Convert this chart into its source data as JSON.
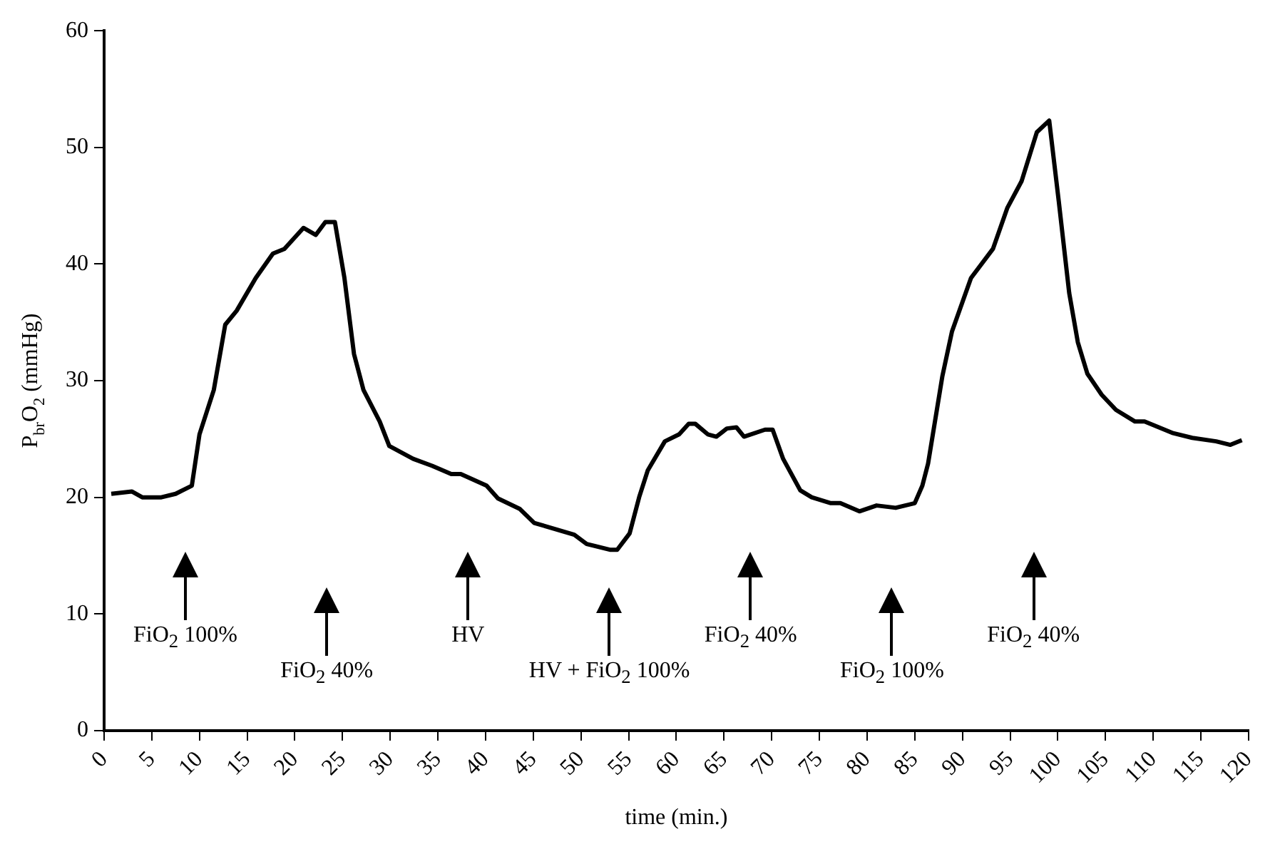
{
  "chart_data": {
    "type": "line",
    "xlabel": "time (min.)",
    "ylabel": "P$_{br}$O$_{2}$ (mmHg)",
    "x": [
      0.75,
      2.9,
      4,
      6,
      7.5,
      9.2,
      10,
      11.5,
      12.7,
      13.9,
      15.9,
      17.7,
      18.9,
      20.9,
      22.2,
      23.2,
      24.2,
      25.2,
      26.2,
      27.2,
      28.9,
      29.9,
      32.4,
      34.4,
      36.4,
      37.4,
      40.1,
      41.3,
      43.6,
      45.1,
      49.3,
      50.6,
      53.1,
      53.8,
      55.1,
      56.1,
      57,
      58.8,
      60.3,
      61.3,
      62,
      63.3,
      64.2,
      65.3,
      66.3,
      67.1,
      69.3,
      70.1,
      71.2,
      73,
      74.2,
      76.2,
      77.2,
      79.2,
      81,
      83,
      84,
      85,
      85.8,
      86.4,
      87.9,
      88.9,
      90.9,
      93.2,
      94.7,
      96.2,
      97.8,
      99.1,
      100.1,
      101.2,
      102.1,
      103.1,
      104.6,
      106.1,
      108.1,
      109.1,
      110.6,
      112.1,
      114.1,
      116.6,
      118.1,
      119.3
    ],
    "series": [
      {
        "color": "#000000",
        "values": [
          20.3,
          20.5,
          20,
          20,
          20.3,
          21,
          25.4,
          29.2,
          34.8,
          36,
          38.8,
          40.9,
          41.3,
          43.1,
          42.5,
          43.6,
          43.6,
          38.8,
          32.3,
          29.2,
          26.5,
          24.4,
          23.3,
          22.7,
          22,
          22,
          21,
          19.9,
          19,
          17.8,
          16.8,
          16,
          15.5,
          15.5,
          16.9,
          20,
          22.3,
          24.8,
          25.4,
          26.3,
          26.3,
          25.4,
          25.2,
          25.9,
          26,
          25.2,
          25.8,
          25.8,
          23.3,
          20.6,
          20,
          19.5,
          19.5,
          18.8,
          19.3,
          19.1,
          19.3,
          19.5,
          21,
          22.9,
          30.4,
          34.2,
          38.8,
          41.3,
          44.8,
          47.1,
          51.3,
          52.3,
          45.4,
          37.5,
          33.3,
          30.6,
          28.8,
          27.5,
          26.5,
          26.5,
          26,
          25.5,
          25.1,
          24.8,
          24.5,
          24.9
        ]
      }
    ],
    "xlim": [
      0,
      120
    ],
    "xticks": [
      0,
      5,
      10,
      15,
      20,
      25,
      30,
      35,
      40,
      45,
      50,
      55,
      60,
      65,
      70,
      75,
      80,
      85,
      90,
      95,
      100,
      105,
      110,
      115,
      120
    ],
    "ylim": [
      0,
      60
    ],
    "yticks": [
      0,
      10,
      20,
      30,
      40,
      50,
      60
    ],
    "grid": false,
    "legend": false,
    "marker": "none",
    "line_style": "solid",
    "annotations": [
      "FiO$_{2}$ 100%",
      "FiO$_{2}$ 40%",
      "HV",
      "HV + FiO$_{2}$ 100%",
      "FiO$_{2}$ 40%",
      "FiO$_{2}$ 100%",
      "FiO$_{2}$ 40%"
    ]
  }
}
